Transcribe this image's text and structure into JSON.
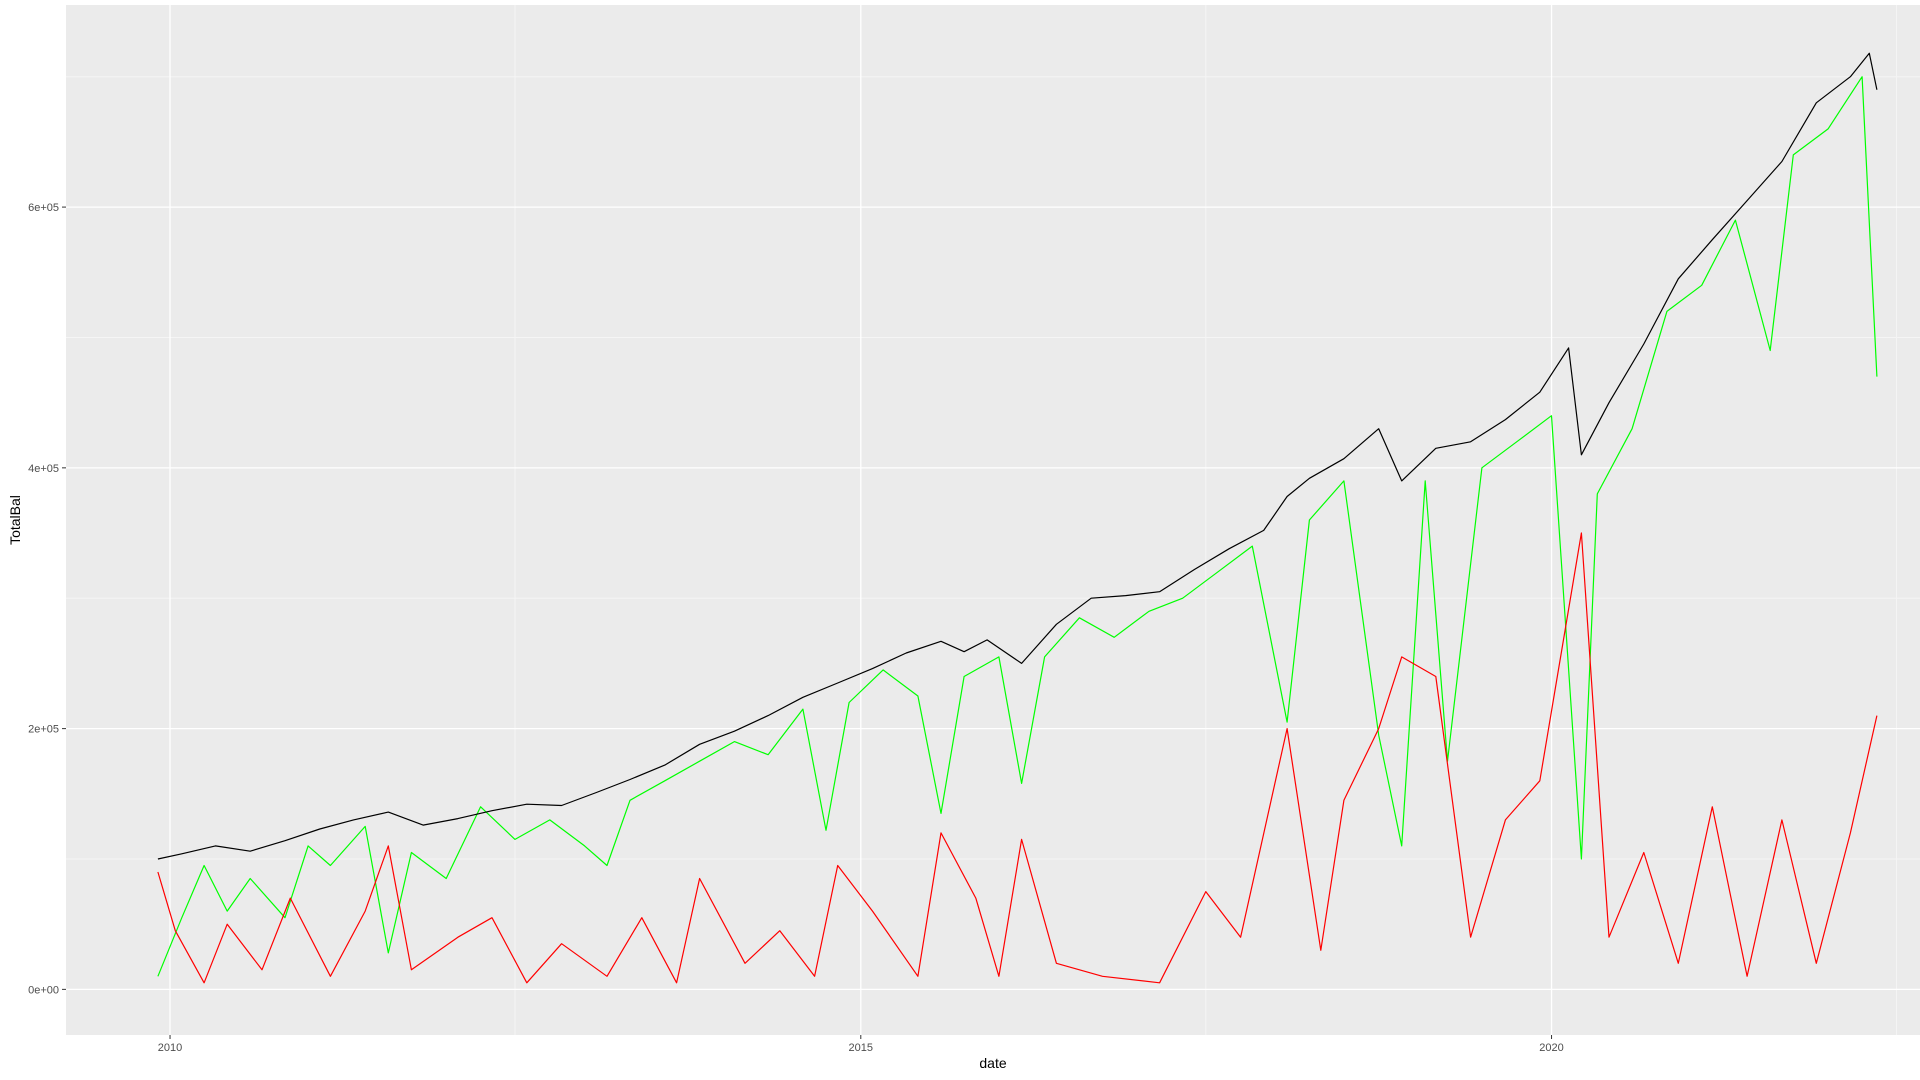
{
  "chart_data": {
    "type": "line",
    "title": "",
    "xlabel": "date",
    "ylabel": "TotalBal",
    "xlim": [
      "2009-04-01",
      "2022-09-01"
    ],
    "ylim": [
      -35000,
      755000
    ],
    "x_ticks": [
      {
        "value": "2010-01-01",
        "label": "2010"
      },
      {
        "value": "2015-01-01",
        "label": "2015"
      },
      {
        "value": "2020-01-01",
        "label": "2020"
      }
    ],
    "y_ticks": [
      {
        "value": 0,
        "label": "0e+00"
      },
      {
        "value": 200000,
        "label": "2e+05"
      },
      {
        "value": 400000,
        "label": "4e+05"
      },
      {
        "value": 600000,
        "label": "6e+05"
      }
    ],
    "grid": true,
    "legend": "none",
    "colors": {
      "panel_background": "#EBEBEB",
      "grid_major": "#FFFFFF",
      "grid_minor": "#F5F5F5",
      "black_series": "#000000",
      "green_series": "#00FF00",
      "red_series": "#FF0000"
    },
    "series": [
      {
        "color": "#000000",
        "points": [
          [
            "2009-11-30",
            100000
          ],
          [
            "2010-02-01",
            104000
          ],
          [
            "2010-05-01",
            110000
          ],
          [
            "2010-08-01",
            106000
          ],
          [
            "2010-11-01",
            114000
          ],
          [
            "2011-02-01",
            123000
          ],
          [
            "2011-05-01",
            130000
          ],
          [
            "2011-08-01",
            136000
          ],
          [
            "2011-11-01",
            126000
          ],
          [
            "2012-02-01",
            131000
          ],
          [
            "2012-05-01",
            137000
          ],
          [
            "2012-08-01",
            142000
          ],
          [
            "2012-11-01",
            141000
          ],
          [
            "2013-02-01",
            151000
          ],
          [
            "2013-05-01",
            161000
          ],
          [
            "2013-08-01",
            172000
          ],
          [
            "2013-11-01",
            188000
          ],
          [
            "2014-02-01",
            198000
          ],
          [
            "2014-05-01",
            210000
          ],
          [
            "2014-08-01",
            224000
          ],
          [
            "2014-11-01",
            235000
          ],
          [
            "2015-02-01",
            246000
          ],
          [
            "2015-05-01",
            258000
          ],
          [
            "2015-08-01",
            267000
          ],
          [
            "2015-10-01",
            259000
          ],
          [
            "2015-12-01",
            268000
          ],
          [
            "2016-03-01",
            250000
          ],
          [
            "2016-06-01",
            280000
          ],
          [
            "2016-09-01",
            300000
          ],
          [
            "2016-12-01",
            302000
          ],
          [
            "2017-03-01",
            305000
          ],
          [
            "2017-06-01",
            322000
          ],
          [
            "2017-09-01",
            338000
          ],
          [
            "2017-12-01",
            352000
          ],
          [
            "2018-02-01",
            378000
          ],
          [
            "2018-04-01",
            392000
          ],
          [
            "2018-07-01",
            407000
          ],
          [
            "2018-10-01",
            430000
          ],
          [
            "2018-12-01",
            390000
          ],
          [
            "2019-03-01",
            415000
          ],
          [
            "2019-06-01",
            420000
          ],
          [
            "2019-09-01",
            437000
          ],
          [
            "2019-12-01",
            458000
          ],
          [
            "2020-02-15",
            492000
          ],
          [
            "2020-03-20",
            410000
          ],
          [
            "2020-06-01",
            450000
          ],
          [
            "2020-09-01",
            495000
          ],
          [
            "2020-12-01",
            545000
          ],
          [
            "2021-03-01",
            575000
          ],
          [
            "2021-06-01",
            605000
          ],
          [
            "2021-09-01",
            635000
          ],
          [
            "2021-12-01",
            680000
          ],
          [
            "2022-03-01",
            700000
          ],
          [
            "2022-04-20",
            718000
          ],
          [
            "2022-05-10",
            690000
          ]
        ]
      },
      {
        "color": "#00FF00",
        "points": [
          [
            "2009-11-30",
            10000
          ],
          [
            "2010-02-01",
            55000
          ],
          [
            "2010-04-01",
            95000
          ],
          [
            "2010-06-01",
            60000
          ],
          [
            "2010-08-01",
            85000
          ],
          [
            "2010-11-01",
            55000
          ],
          [
            "2011-01-01",
            110000
          ],
          [
            "2011-03-01",
            95000
          ],
          [
            "2011-06-01",
            125000
          ],
          [
            "2011-08-01",
            28000
          ],
          [
            "2011-10-01",
            105000
          ],
          [
            "2012-01-01",
            85000
          ],
          [
            "2012-04-01",
            140000
          ],
          [
            "2012-07-01",
            115000
          ],
          [
            "2012-10-01",
            130000
          ],
          [
            "2013-01-01",
            110000
          ],
          [
            "2013-03-01",
            95000
          ],
          [
            "2013-05-01",
            145000
          ],
          [
            "2013-08-01",
            160000
          ],
          [
            "2013-11-01",
            175000
          ],
          [
            "2014-02-01",
            190000
          ],
          [
            "2014-05-01",
            180000
          ],
          [
            "2014-08-01",
            215000
          ],
          [
            "2014-10-01",
            122000
          ],
          [
            "2014-12-01",
            220000
          ],
          [
            "2015-03-01",
            245000
          ],
          [
            "2015-06-01",
            225000
          ],
          [
            "2015-08-01",
            135000
          ],
          [
            "2015-10-01",
            240000
          ],
          [
            "2016-01-01",
            255000
          ],
          [
            "2016-03-01",
            158000
          ],
          [
            "2016-05-01",
            255000
          ],
          [
            "2016-08-01",
            285000
          ],
          [
            "2016-11-01",
            270000
          ],
          [
            "2017-02-01",
            290000
          ],
          [
            "2017-05-01",
            300000
          ],
          [
            "2017-08-01",
            320000
          ],
          [
            "2017-11-01",
            340000
          ],
          [
            "2018-02-01",
            205000
          ],
          [
            "2018-04-01",
            360000
          ],
          [
            "2018-07-01",
            390000
          ],
          [
            "2018-10-01",
            195000
          ],
          [
            "2018-12-01",
            110000
          ],
          [
            "2019-02-01",
            390000
          ],
          [
            "2019-04-01",
            175000
          ],
          [
            "2019-07-01",
            400000
          ],
          [
            "2019-10-01",
            420000
          ],
          [
            "2020-01-01",
            440000
          ],
          [
            "2020-03-20",
            100000
          ],
          [
            "2020-05-01",
            380000
          ],
          [
            "2020-08-01",
            430000
          ],
          [
            "2020-11-01",
            520000
          ],
          [
            "2021-02-01",
            540000
          ],
          [
            "2021-05-01",
            590000
          ],
          [
            "2021-08-01",
            490000
          ],
          [
            "2021-10-01",
            640000
          ],
          [
            "2022-01-01",
            660000
          ],
          [
            "2022-04-01",
            700000
          ],
          [
            "2022-05-10",
            470000
          ]
        ]
      },
      {
        "color": "#FF0000",
        "points": [
          [
            "2009-11-30",
            90000
          ],
          [
            "2010-01-15",
            45000
          ],
          [
            "2010-04-01",
            5000
          ],
          [
            "2010-06-01",
            50000
          ],
          [
            "2010-09-01",
            15000
          ],
          [
            "2010-11-15",
            70000
          ],
          [
            "2011-03-01",
            10000
          ],
          [
            "2011-06-01",
            60000
          ],
          [
            "2011-08-01",
            110000
          ],
          [
            "2011-10-01",
            15000
          ],
          [
            "2012-02-01",
            40000
          ],
          [
            "2012-05-01",
            55000
          ],
          [
            "2012-08-01",
            5000
          ],
          [
            "2012-11-01",
            35000
          ],
          [
            "2013-03-01",
            10000
          ],
          [
            "2013-06-01",
            55000
          ],
          [
            "2013-09-01",
            5000
          ],
          [
            "2013-11-01",
            85000
          ],
          [
            "2014-03-01",
            20000
          ],
          [
            "2014-06-01",
            45000
          ],
          [
            "2014-09-01",
            10000
          ],
          [
            "2014-11-01",
            95000
          ],
          [
            "2015-02-01",
            60000
          ],
          [
            "2015-06-01",
            10000
          ],
          [
            "2015-08-01",
            120000
          ],
          [
            "2015-11-01",
            70000
          ],
          [
            "2016-01-01",
            10000
          ],
          [
            "2016-03-01",
            115000
          ],
          [
            "2016-06-01",
            20000
          ],
          [
            "2016-10-01",
            10000
          ],
          [
            "2017-03-01",
            5000
          ],
          [
            "2017-07-01",
            75000
          ],
          [
            "2017-10-01",
            40000
          ],
          [
            "2018-02-01",
            200000
          ],
          [
            "2018-05-01",
            30000
          ],
          [
            "2018-07-01",
            145000
          ],
          [
            "2018-10-01",
            200000
          ],
          [
            "2018-12-01",
            255000
          ],
          [
            "2019-03-01",
            240000
          ],
          [
            "2019-06-01",
            40000
          ],
          [
            "2019-09-01",
            130000
          ],
          [
            "2019-12-01",
            160000
          ],
          [
            "2020-03-20",
            350000
          ],
          [
            "2020-06-01",
            40000
          ],
          [
            "2020-09-01",
            105000
          ],
          [
            "2020-12-01",
            20000
          ],
          [
            "2021-03-01",
            140000
          ],
          [
            "2021-06-01",
            10000
          ],
          [
            "2021-09-01",
            130000
          ],
          [
            "2021-12-01",
            20000
          ],
          [
            "2022-03-01",
            120000
          ],
          [
            "2022-05-10",
            210000
          ]
        ]
      }
    ]
  }
}
